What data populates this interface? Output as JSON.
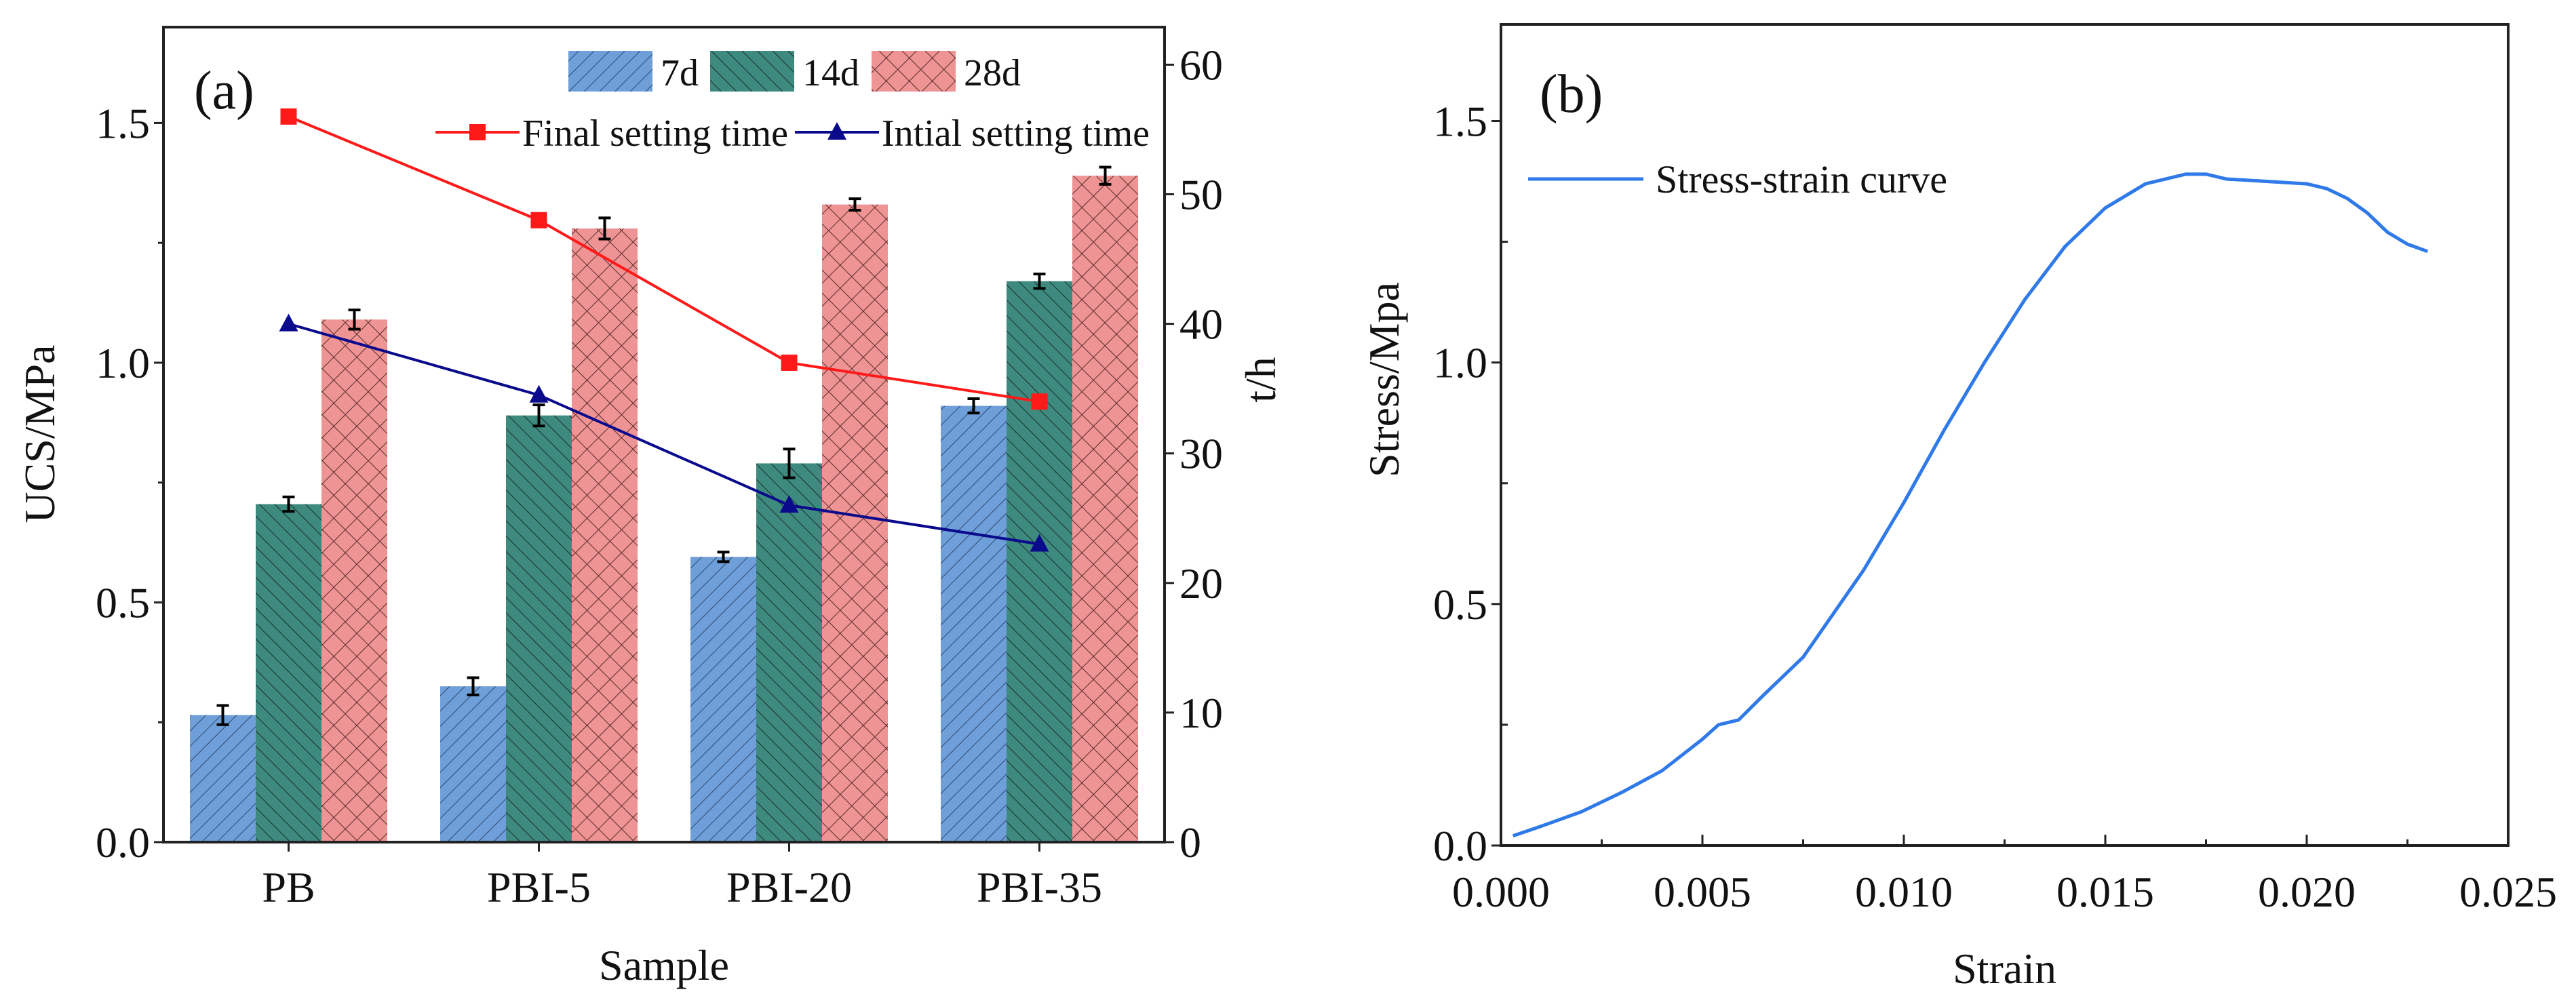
{
  "chart_data": [
    {
      "panel_label": "(a)",
      "type": "bar",
      "xlabel": "Sample",
      "ylabel": "UCS/MPa",
      "y2label": "t/h",
      "ylim": [
        0,
        1.7
      ],
      "y2lim": [
        0,
        62.9
      ],
      "yticks": [
        "0.0",
        "0.5",
        "1.0",
        "1.5"
      ],
      "y2ticks": [
        "0",
        "10",
        "20",
        "30",
        "40",
        "50",
        "60"
      ],
      "categories": [
        "PB",
        "PBI-5",
        "PBI-20",
        "PBI-35"
      ],
      "series": [
        {
          "name": "7d",
          "color": "#6f9fd8",
          "values": [
            0.265,
            0.325,
            0.595,
            0.91
          ],
          "errors": [
            0.02,
            0.018,
            0.01,
            0.015
          ]
        },
        {
          "name": "14d",
          "color": "#3f8a7f",
          "values": [
            0.705,
            0.89,
            0.79,
            1.17
          ],
          "errors": [
            0.015,
            0.022,
            0.03,
            0.015
          ]
        },
        {
          "name": "28d",
          "color": "#ef9494",
          "values": [
            1.09,
            1.28,
            1.33,
            1.39
          ],
          "errors": [
            0.02,
            0.022,
            0.012,
            0.018
          ]
        }
      ],
      "line_series": [
        {
          "name": "Final setting time",
          "color": "#ff1a1a",
          "marker": "square",
          "axis": "right",
          "values": [
            56,
            48,
            37,
            34
          ]
        },
        {
          "name": "Intial setting time",
          "color": "#0a0a8c",
          "marker": "triangle",
          "axis": "right",
          "values": [
            40,
            34.5,
            26,
            23
          ]
        }
      ],
      "legend": "top-right"
    },
    {
      "panel_label": "(b)",
      "type": "line",
      "xlabel": "Strain",
      "ylabel": "Stress/Mpa",
      "xlim": [
        0,
        0.025
      ],
      "ylim": [
        0,
        1.7
      ],
      "xticks": [
        "0.000",
        "0.005",
        "0.010",
        "0.015",
        "0.020",
        "0.025"
      ],
      "yticks": [
        "0.0",
        "0.5",
        "1.0",
        "1.5"
      ],
      "series": [
        {
          "name": "Stress-strain curve",
          "color": "#2f7ae8",
          "x": [
            0.0003,
            0.001,
            0.002,
            0.003,
            0.004,
            0.005,
            0.0054,
            0.0059,
            0.0065,
            0.0075,
            0.008,
            0.009,
            0.01,
            0.011,
            0.012,
            0.013,
            0.014,
            0.015,
            0.016,
            0.017,
            0.0175,
            0.018,
            0.019,
            0.02,
            0.0205,
            0.021,
            0.0215,
            0.022,
            0.0225,
            0.023
          ],
          "y": [
            0.02,
            0.04,
            0.07,
            0.11,
            0.155,
            0.22,
            0.25,
            0.26,
            0.31,
            0.39,
            0.45,
            0.57,
            0.71,
            0.86,
            1.0,
            1.13,
            1.24,
            1.32,
            1.37,
            1.39,
            1.39,
            1.38,
            1.375,
            1.37,
            1.36,
            1.34,
            1.31,
            1.27,
            1.245,
            1.23
          ]
        }
      ],
      "legend": "top-left"
    }
  ]
}
